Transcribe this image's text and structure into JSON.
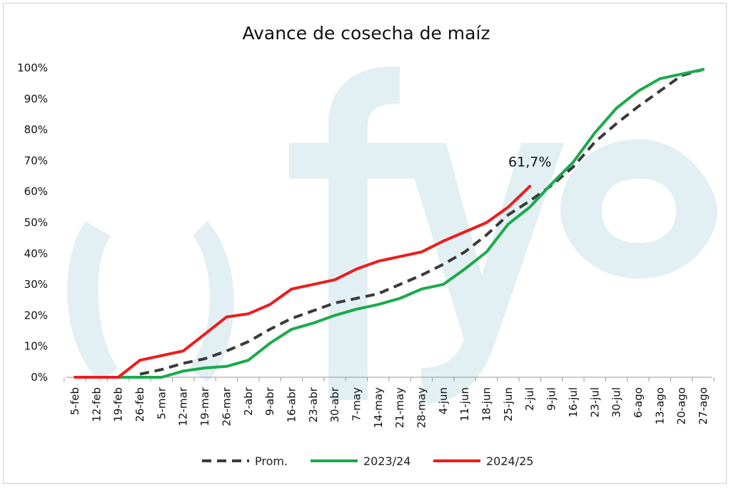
{
  "chart_data": {
    "type": "line",
    "title": "Avance de cosecha de maíz",
    "xlabel": "",
    "ylabel": "",
    "ylim": [
      0,
      100
    ],
    "y_ticks": [
      "0%",
      "10%",
      "20%",
      "30%",
      "40%",
      "50%",
      "60%",
      "70%",
      "80%",
      "90%",
      "100%"
    ],
    "categories": [
      "5-feb",
      "12-feb",
      "19-feb",
      "26-feb",
      "5-mar",
      "12-mar",
      "19-mar",
      "26-mar",
      "2-abr",
      "9-abr",
      "16-abr",
      "23-abr",
      "30-abr",
      "7-may",
      "14-may",
      "21-may",
      "28-may",
      "4-jun",
      "11-jun",
      "18-jun",
      "25-jun",
      "2-jul",
      "9-jul",
      "16-jul",
      "23-jul",
      "30-jul",
      "6-ago",
      "13-ago",
      "20-ago",
      "27-ago"
    ],
    "series": [
      {
        "name": "Prom.",
        "color": "#3a3a3a",
        "dash": true,
        "values": [
          null,
          null,
          null,
          1,
          2.5,
          4.5,
          6,
          8.5,
          11.5,
          15.5,
          19,
          21.5,
          24,
          25.5,
          27,
          30,
          33,
          36.5,
          40.5,
          46,
          52.5,
          57,
          62,
          68,
          76,
          82,
          87.5,
          92.5,
          97.5,
          99.5
        ]
      },
      {
        "name": "2023/24",
        "color": "#1aaa4b",
        "dash": false,
        "values": [
          null,
          null,
          0,
          0,
          0,
          2,
          3,
          3.5,
          5.5,
          11,
          15.5,
          17.5,
          20,
          22,
          23.5,
          25.5,
          28.5,
          30,
          35,
          40.5,
          49.5,
          55,
          62.5,
          69.5,
          79,
          87,
          92.5,
          96.5,
          98,
          99.5
        ]
      },
      {
        "name": "2024/25",
        "color": "#ee1c1c",
        "dash": false,
        "values": [
          0,
          0,
          0,
          5.5,
          7,
          8.5,
          14,
          19.5,
          20.5,
          23.5,
          28.5,
          30,
          31.5,
          35,
          37.5,
          39,
          40.5,
          44,
          47,
          50,
          55,
          61.7,
          null,
          null,
          null,
          null,
          null,
          null,
          null,
          null
        ]
      }
    ],
    "annotations": [
      {
        "text": "61,7%",
        "series": "2024/25",
        "category": "2-jul",
        "value": 61.7
      }
    ],
    "grid": false,
    "legend": "bottom-center"
  }
}
